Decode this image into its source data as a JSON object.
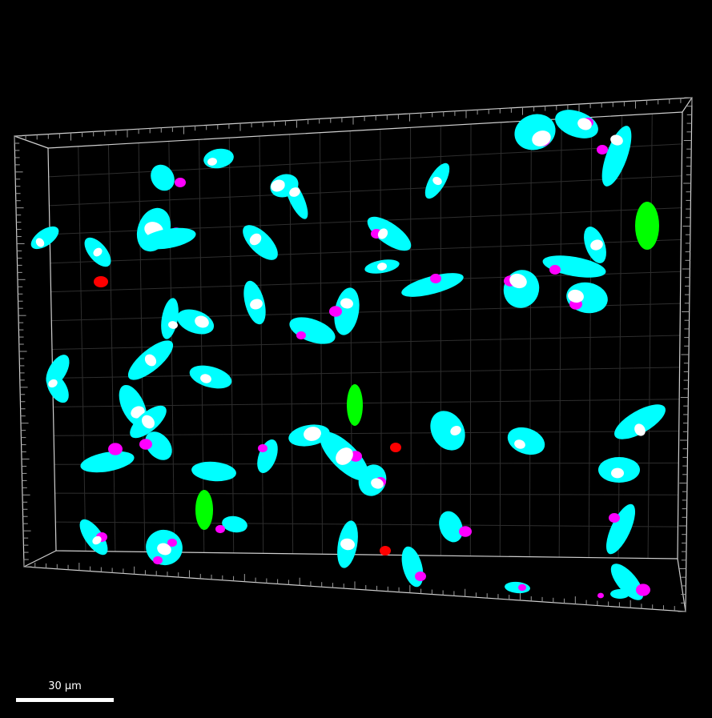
{
  "scale_bar": {
    "label": "30 µm"
  },
  "colors": {
    "background": "#000000",
    "nucleus": "#00ffff",
    "nucleus_highlight": "#ffffff",
    "spot_magenta": "#ff00ff",
    "green_object": "#00ff00",
    "red_object": "#ff0000",
    "bounding_box": "#cfcfcf",
    "grid": "#2e2e2e"
  },
  "icons": [
    "bounding-box-frame",
    "scale-bar"
  ]
}
